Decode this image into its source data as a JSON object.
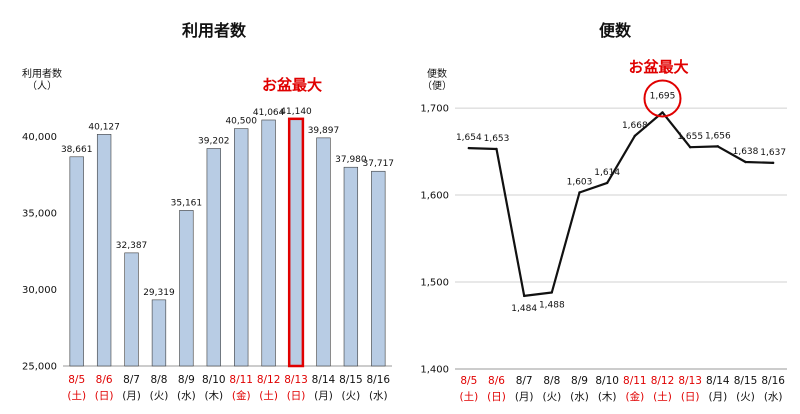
{
  "colors": {
    "bar_fill": "#b8cce4",
    "bar_stroke": "#3d3d3d",
    "highlight": "#e00000",
    "holiday_text": "#e00000",
    "normal_text": "#111111",
    "line": "#111111",
    "grid": "#d0d0d0",
    "axis": "#9a9a9a"
  },
  "chart_data": [
    {
      "type": "bar",
      "title": "利用者数",
      "ylabel": "利用者数\n（人）",
      "ylim": [
        25000,
        42500
      ],
      "yticks": [
        25000,
        30000,
        35000,
        40000
      ],
      "ytick_labels": [
        "25,000",
        "30,000",
        "35,000",
        "40,000"
      ],
      "categories": [
        "8/5",
        "8/6",
        "8/7",
        "8/8",
        "8/9",
        "8/10",
        "8/11",
        "8/12",
        "8/13",
        "8/14",
        "8/15",
        "8/16"
      ],
      "days": [
        "(土)",
        "(日)",
        "(月)",
        "(火)",
        "(水)",
        "(木)",
        "(金)",
        "(土)",
        "(日)",
        "(月)",
        "(火)",
        "(水)"
      ],
      "red_label_indices": [
        0,
        1,
        6,
        7,
        8
      ],
      "values": [
        38661,
        40127,
        32387,
        29319,
        35161,
        39202,
        40500,
        41064,
        41140,
        39897,
        37980,
        37717
      ],
      "value_labels": [
        "38,661",
        "40,127",
        "32,387",
        "29,319",
        "35,161",
        "39,202",
        "40,500",
        "41,064",
        "41,140",
        "39,897",
        "37,980",
        "37,717"
      ],
      "highlight_index": 8,
      "annotation": "お盆最大",
      "grid": false
    },
    {
      "type": "line",
      "title": "便数",
      "ylabel": "便数\n（便）",
      "ylim": [
        1400,
        1730
      ],
      "yticks": [
        1400,
        1500,
        1600,
        1700
      ],
      "ytick_labels": [
        "1,400",
        "1,500",
        "1,600",
        "1,700"
      ],
      "categories": [
        "8/5",
        "8/6",
        "8/7",
        "8/8",
        "8/9",
        "8/10",
        "8/11",
        "8/12",
        "8/13",
        "8/14",
        "8/15",
        "8/16"
      ],
      "days": [
        "(土)",
        "(日)",
        "(月)",
        "(火)",
        "(水)",
        "(木)",
        "(金)",
        "(土)",
        "(日)",
        "(月)",
        "(火)",
        "(水)"
      ],
      "red_label_indices": [
        0,
        1,
        6,
        7,
        8
      ],
      "values": [
        1654,
        1653,
        1484,
        1488,
        1603,
        1614,
        1668,
        1695,
        1655,
        1656,
        1638,
        1637
      ],
      "value_labels": [
        "1,654",
        "1,653",
        "1,484",
        "1,488",
        "1,603",
        "1,614",
        "1,668",
        "1,695",
        "1,655",
        "1,656",
        "1,638",
        "1,637"
      ],
      "highlight_index": 7,
      "annotation": "お盆最大",
      "grid": true
    }
  ]
}
